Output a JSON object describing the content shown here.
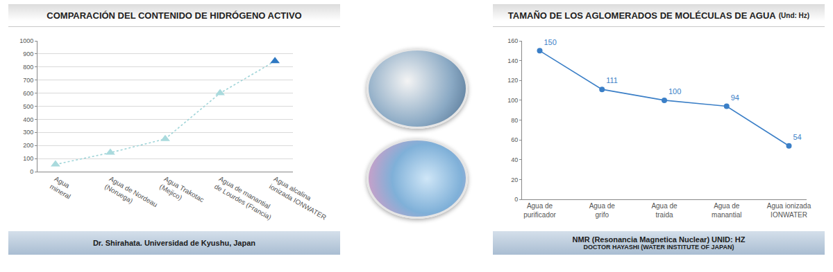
{
  "chart_data": [
    {
      "type": "line",
      "title": "COMPARACIÓN DEL CONTENIDO DE HIDRÓGENO ACTIVO",
      "footer": [
        "Dr. Shirahata.  Universidad de Kyushu, Japan"
      ],
      "categories": [
        "Agua\nmineral",
        "Agua de Nordeau\n(Noruega)",
        "Agua Trakotac\n(Mejico)",
        "Agua de manantial\nde Lourdes (Francia)",
        "Agua alcalina\nionizada IONWATER"
      ],
      "values": [
        55,
        145,
        250,
        600,
        845
      ],
      "color": "#9fd4d8",
      "colors": [
        "#a9dadd",
        "#a9dadd",
        "#a9dadd",
        "#a9dadd",
        "#2e78c2"
      ],
      "marker": "triangle-up",
      "line_style": "dotted",
      "ylim": [
        0,
        1000
      ],
      "yticks": [
        0,
        100,
        200,
        300,
        400,
        500,
        600,
        700,
        800,
        900,
        1000
      ],
      "grid": true
    },
    {
      "type": "line",
      "title": "TAMAÑO DE LOS AGLOMERADOS DE MOLÉCULAS DE AGUA",
      "subtitle": "(Und: Hz)",
      "footer": [
        "NMR (Resonancia Magnetica Nuclear) UNID: HZ",
        "DOCTOR HAYASHI (WATER INSTITUTE OF JAPAN)"
      ],
      "categories": [
        "Agua de\npurificador",
        "Agua de\ngrifo",
        "Agua de\ntraida",
        "Agua de\nmanantial",
        "Agua ionizada\nIONWATER"
      ],
      "values": [
        150,
        111,
        100,
        94,
        54
      ],
      "color": "#3b7fc7",
      "marker": "circle",
      "line_style": "solid",
      "data_labels": true,
      "ylim": [
        0,
        160
      ],
      "yticks": [
        0,
        20,
        40,
        60,
        80,
        100,
        120,
        140,
        160
      ],
      "grid": false
    }
  ]
}
